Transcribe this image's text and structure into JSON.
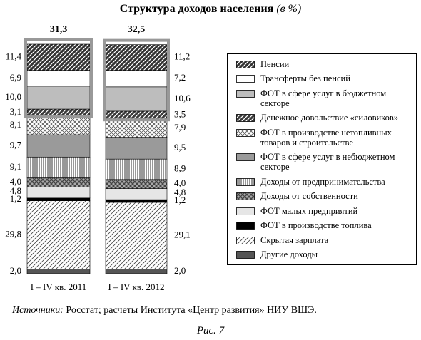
{
  "chart_data": {
    "type": "stacked-bar",
    "title": "Структура доходов населения",
    "title_suffix": "(в %)",
    "categories": [
      "I – IV кв. 2011",
      "I – IV кв. 2012"
    ],
    "bracket_totals": {
      "values": [
        31.3,
        32.5
      ],
      "value_labels": [
        "31,3",
        "32,5"
      ]
    },
    "legend": "right",
    "series": [
      {
        "name": "Пенсии",
        "color": "#333333",
        "pattern": "hatch-dark",
        "values": [
          11.4,
          11.2
        ],
        "value_labels": [
          "11,4",
          "11,2"
        ]
      },
      {
        "name": "Трансферты без пенсий",
        "color": "#ffffff",
        "pattern": "solid",
        "values": [
          6.9,
          7.2
        ],
        "value_labels": [
          "6,9",
          "7,2"
        ]
      },
      {
        "name": "ФОТ в сфере услуг в бюджетном секторе",
        "color": "#bdbdbd",
        "pattern": "solid",
        "values": [
          10.0,
          10.6
        ],
        "value_labels": [
          "10,0",
          "10,6"
        ]
      },
      {
        "name": "Денежное довольствие «силовиков»",
        "color": "#3a3a3a",
        "pattern": "hatch-dark",
        "values": [
          3.1,
          3.5
        ],
        "value_labels": [
          "3,1",
          "3,5"
        ]
      },
      {
        "name": "ФОТ в производстве нетопливных товаров и строительстве",
        "color": "#555555",
        "pattern": "crosshatch",
        "values": [
          8.1,
          7.9
        ],
        "value_labels": [
          "8,1",
          "7,9"
        ]
      },
      {
        "name": "ФОТ в сфере услуг в небюджетном секторе",
        "color": "#9a9a9a",
        "pattern": "solid",
        "values": [
          9.7,
          9.5
        ],
        "value_labels": [
          "9,7",
          "9,5"
        ]
      },
      {
        "name": "Доходы от предпринимательства",
        "color": "#333333",
        "pattern": "vertical",
        "values": [
          9.1,
          8.9
        ],
        "value_labels": [
          "9,1",
          "8,9"
        ]
      },
      {
        "name": "Доходы от собственности",
        "color": "#444444",
        "pattern": "crosshatch-dark",
        "values": [
          4.0,
          4.0
        ],
        "value_labels": [
          "4,0",
          "4,0"
        ]
      },
      {
        "name": "ФОТ малых предприятий",
        "color": "#e6e6e6",
        "pattern": "solid",
        "values": [
          4.8,
          4.8
        ],
        "value_labels": [
          "4,8",
          "4,8"
        ]
      },
      {
        "name": "ФОТ в производстве топлива",
        "color": "#000000",
        "pattern": "solid",
        "values": [
          1.2,
          1.2
        ],
        "value_labels": [
          "1,2",
          "1,2"
        ]
      },
      {
        "name": "Скрытая зарплата",
        "color": "#444444",
        "pattern": "hatch-light",
        "values": [
          29.8,
          29.1
        ],
        "value_labels": [
          "29,8",
          "29,1"
        ]
      },
      {
        "name": "Другие доходы",
        "color": "#555555",
        "pattern": "solid",
        "values": [
          2.0,
          2.0
        ],
        "value_labels": [
          "2,0",
          "2,0"
        ]
      }
    ],
    "source_label": "Источники:",
    "source": "Росстат; расчеты Института «Центр развития» НИУ ВШЭ.",
    "figure_label": "Рис. 7"
  }
}
